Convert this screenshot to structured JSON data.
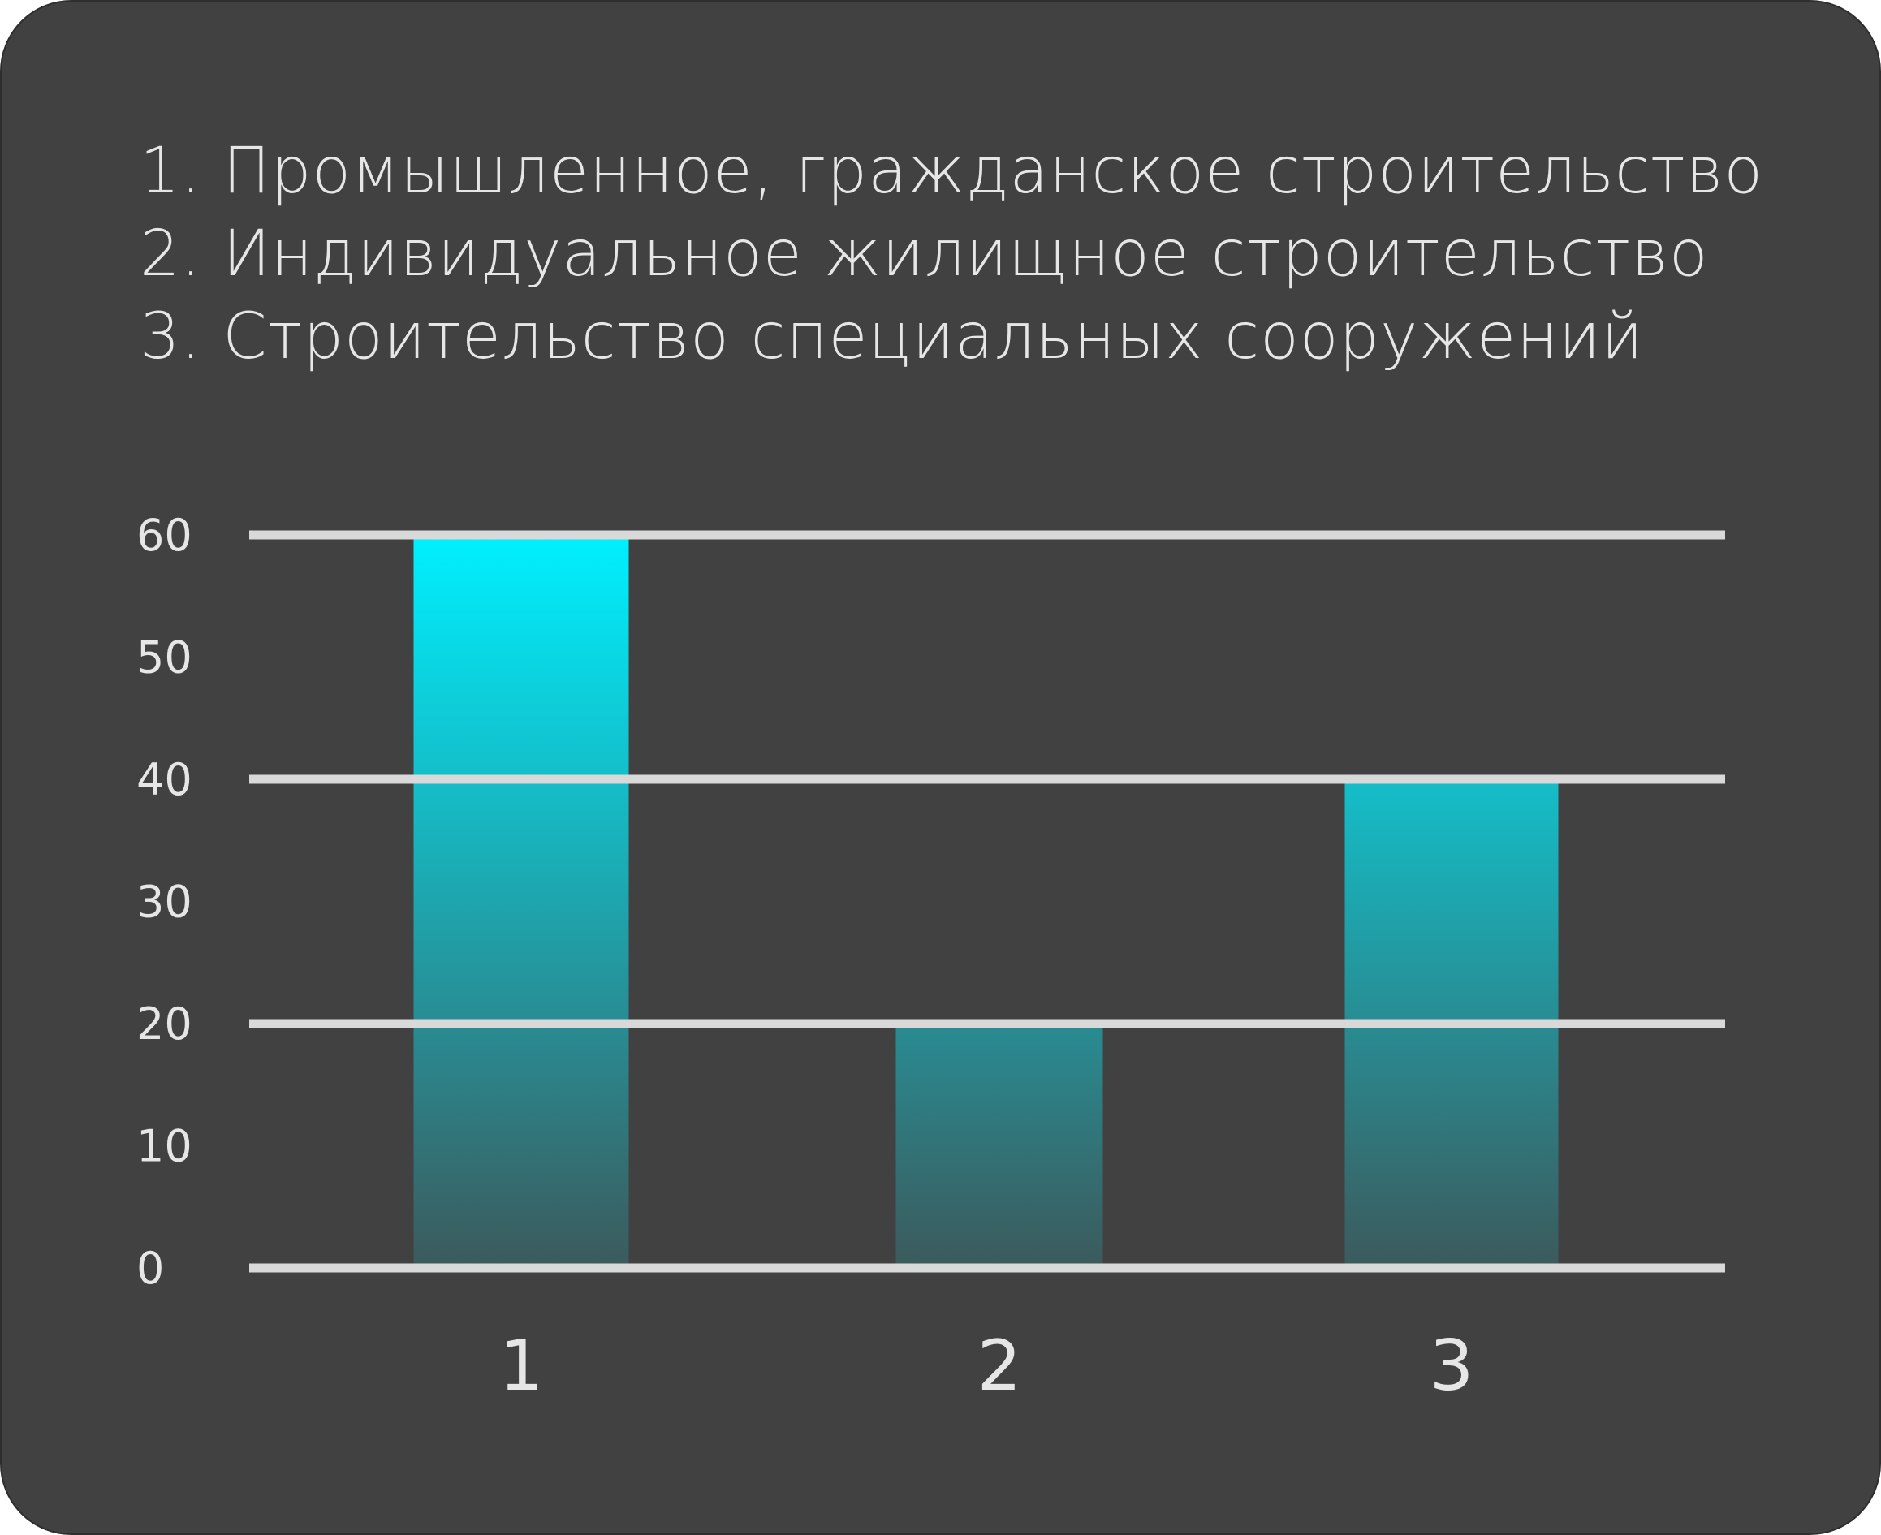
{
  "legend": [
    "1. Промышленное, гражданское строительство",
    "2. Индивидуальное жилищное строительство",
    "3. Строительство специальных сооружений"
  ],
  "colors": {
    "background": "#414141",
    "gridline": "#d9d9d9",
    "text": "#e6e6e6",
    "bar_top": "#00f0ff",
    "bar_bottom": "#3c5a5c"
  },
  "chart_data": {
    "type": "bar",
    "categories": [
      "1",
      "2",
      "3"
    ],
    "values": [
      60,
      20,
      40
    ],
    "yticks": [
      "0",
      "10",
      "20",
      "30",
      "40",
      "50",
      "60"
    ],
    "ylim": [
      0,
      60
    ],
    "gridlines": [
      0,
      20,
      40,
      60
    ],
    "title": "",
    "xlabel": "",
    "ylabel": ""
  }
}
